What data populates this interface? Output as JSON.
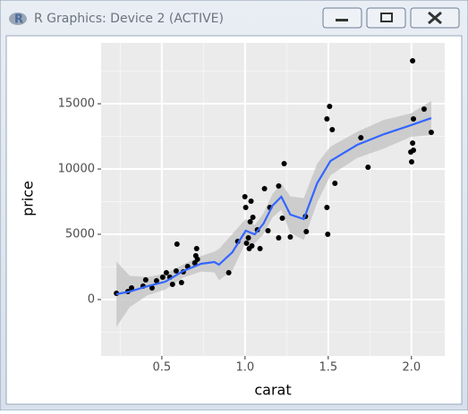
{
  "window": {
    "title": "R Graphics: Device 2 (ACTIVE)"
  },
  "chart_data": {
    "type": "scatter",
    "xlabel": "carat",
    "ylabel": "price",
    "x": [
      0.227,
      0.296,
      0.318,
      0.387,
      0.403,
      0.441,
      0.468,
      0.505,
      0.527,
      0.548,
      0.564,
      0.586,
      0.591,
      0.618,
      0.629,
      0.655,
      0.698,
      0.709,
      0.704,
      0.714,
      0.902,
      0.956,
      0.999,
      1.004,
      1.02,
      1.009,
      1.036,
      1.031,
      1.047,
      1.041,
      1.025,
      1.074,
      1.09,
      1.117,
      1.138,
      1.149,
      1.202,
      1.202,
      1.224,
      1.235,
      1.272,
      1.363,
      1.368,
      1.492,
      1.508,
      1.524,
      1.492,
      1.497,
      1.54,
      1.696,
      1.739,
      2.007,
      2.012,
      2.007,
      2.012,
      1.996,
      2.001,
      2.076,
      2.119
    ],
    "values": [
      480,
      616,
      890,
      1027,
      1507,
      890,
      1438,
      1712,
      2055,
      1712,
      1164,
      2192,
      4247,
      1301,
      2123,
      2534,
      2808,
      3904,
      3356,
      3082,
      2055,
      4452,
      7877,
      7055,
      4726,
      4315,
      7534,
      5959,
      6301,
      4110,
      3904,
      5342,
      3904,
      8493,
      5274,
      7055,
      4726,
      8699,
      6233,
      10411,
      4795,
      6370,
      5205,
      13836,
      14795,
      13014,
      7055,
      5000,
      8904,
      12397,
      10137,
      18288,
      13836,
      11986,
      11438,
      11301,
      10548,
      14589,
      12808
    ],
    "color": "#000000",
    "smooth": {
      "color": "#3366ff",
      "band_color": "#c4c4c4",
      "x": [
        0.227,
        0.307,
        0.414,
        0.521,
        0.629,
        0.736,
        0.816,
        0.843,
        0.924,
        1.004,
        1.058,
        1.111,
        1.165,
        1.218,
        1.272,
        1.353,
        1.433,
        1.513,
        1.674,
        1.835,
        1.996,
        2.119
      ],
      "y": [
        411,
        616,
        1027,
        1370,
        2192,
        2740,
        2877,
        2671,
        3630,
        5274,
        5000,
        5822,
        7192,
        7877,
        6507,
        6164,
        8904,
        10616,
        11849,
        12671,
        13356,
        13904
      ],
      "ymin": [
        -2089,
        -584,
        327,
        770,
        1692,
        2140,
        2077,
        1471,
        2230,
        4374,
        4300,
        5022,
        6292,
        6877,
        5107,
        4564,
        7404,
        9516,
        10849,
        11571,
        12456,
        12604
      ],
      "ymax": [
        2911,
        1816,
        1727,
        1970,
        2692,
        3340,
        3677,
        3871,
        5030,
        6174,
        5700,
        6622,
        8092,
        8877,
        7907,
        7764,
        10404,
        11716,
        12849,
        13771,
        14256,
        15204
      ]
    },
    "xlim": [
      0.135,
      2.2
    ],
    "ylim": [
      -4315,
      19660
    ],
    "xticks": [
      0.5,
      {
        "value": 1,
        "label": "1.0"
      },
      1.5,
      {
        "value": 2,
        "label": "2.0"
      }
    ],
    "yticks": [
      0,
      5000,
      10000,
      15000
    ],
    "grid": true,
    "minor_grid": true
  }
}
